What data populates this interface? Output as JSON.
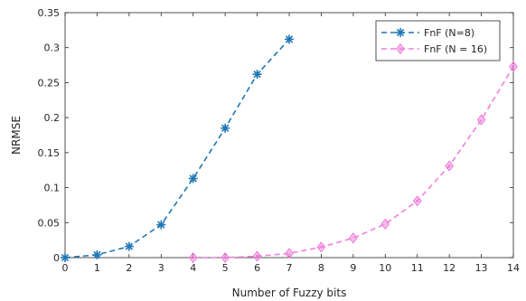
{
  "chart_data": {
    "type": "line",
    "xlabel": "Number of Fuzzy bits",
    "ylabel": "NRMSE",
    "xlim": [
      0,
      14
    ],
    "ylim": [
      0,
      0.35
    ],
    "x_ticks": [
      0,
      1,
      2,
      3,
      4,
      5,
      6,
      7,
      8,
      9,
      10,
      11,
      12,
      13,
      14
    ],
    "y_ticks": [
      0,
      0.05,
      0.1,
      0.15,
      0.2,
      0.25,
      0.3,
      0.35
    ],
    "y_tick_labels": [
      "0",
      "0.05",
      "0.1",
      "0.15",
      "0.2",
      "0.25",
      "0.3",
      "0.35"
    ],
    "grid": false,
    "legend_position": "top-right",
    "series": [
      {
        "name": "FnF (N=8)",
        "color": "#1f77b4",
        "marker": "asterisk",
        "line_style": "dashed",
        "x": [
          0,
          1,
          2,
          3,
          4,
          5,
          6,
          7
        ],
        "values": [
          0.0,
          0.004,
          0.016,
          0.047,
          0.113,
          0.185,
          0.262,
          0.312
        ]
      },
      {
        "name": "FnF (N = 16)",
        "color": "#f07fdc",
        "marker": "diamond",
        "line_style": "dashed",
        "x": [
          4,
          5,
          6,
          7,
          8,
          9,
          10,
          11,
          12,
          13,
          14
        ],
        "values": [
          0.0,
          0.0,
          0.002,
          0.006,
          0.015,
          0.028,
          0.048,
          0.081,
          0.131,
          0.197,
          0.273
        ]
      }
    ]
  }
}
